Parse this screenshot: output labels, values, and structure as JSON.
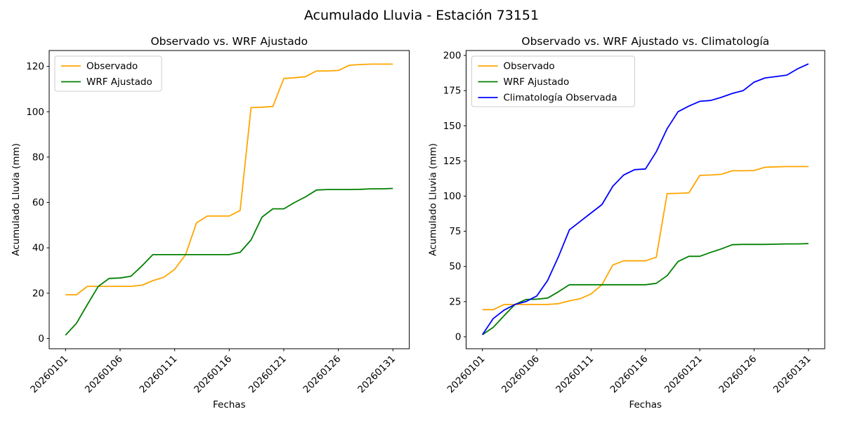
{
  "suptitle": "Acumulado Lluvia - Estación 73151",
  "chart_data": [
    {
      "type": "line",
      "title": "Observado vs. WRF Ajustado",
      "xlabel": "Fechas",
      "ylabel": "Acumulado Lluvia (mm)",
      "x": [
        "20260101",
        "20260102",
        "20260103",
        "20260104",
        "20260105",
        "20260106",
        "20260107",
        "20260108",
        "20260109",
        "20260110",
        "20260111",
        "20260112",
        "20260113",
        "20260114",
        "20260115",
        "20260116",
        "20260117",
        "20260118",
        "20260119",
        "20260120",
        "20260121",
        "20260122",
        "20260123",
        "20260124",
        "20260125",
        "20260126",
        "20260127",
        "20260128",
        "20260129",
        "20260130",
        "20260131"
      ],
      "x_tick_labels": [
        "20260101",
        "20260106",
        "20260111",
        "20260116",
        "20260121",
        "20260126",
        "20260131"
      ],
      "yticks": [
        0,
        20,
        40,
        60,
        80,
        100,
        120
      ],
      "ylim": [
        -4.5,
        127
      ],
      "grid": false,
      "legend_position": "upper left",
      "series": [
        {
          "name": "Observado",
          "color": "#FFA500",
          "values": [
            19.3,
            19.3,
            23,
            23,
            23,
            23,
            23,
            23.5,
            25.5,
            27,
            30.5,
            37,
            51,
            54,
            54,
            54,
            56.5,
            101.8,
            102,
            102.3,
            114.7,
            115,
            115.5,
            118,
            118,
            118.2,
            120.5,
            120.8,
            121,
            121,
            121
          ]
        },
        {
          "name": "WRF Ajustado",
          "color": "#008000",
          "values": [
            1.5,
            6.7,
            15,
            23,
            26.5,
            26.7,
            27.5,
            32,
            37,
            37,
            37,
            37,
            37,
            37,
            37,
            37,
            38,
            43.5,
            53.5,
            57.2,
            57.2,
            60,
            62.5,
            65.5,
            65.7,
            65.7,
            65.7,
            65.8,
            66,
            66,
            66.2
          ]
        }
      ]
    },
    {
      "type": "line",
      "title": "Observado vs. WRF Ajustado vs. Climatología",
      "xlabel": "Fechas",
      "ylabel": "Acumulado Lluvia (mm)",
      "x": [
        "20260101",
        "20260102",
        "20260103",
        "20260104",
        "20260105",
        "20260106",
        "20260107",
        "20260108",
        "20260109",
        "20260110",
        "20260111",
        "20260112",
        "20260113",
        "20260114",
        "20260115",
        "20260116",
        "20260117",
        "20260118",
        "20260119",
        "20260120",
        "20260121",
        "20260122",
        "20260123",
        "20260124",
        "20260125",
        "20260126",
        "20260127",
        "20260128",
        "20260129",
        "20260130",
        "20260131"
      ],
      "x_tick_labels": [
        "20260101",
        "20260106",
        "20260111",
        "20260116",
        "20260121",
        "20260126",
        "20260131"
      ],
      "yticks": [
        0,
        25,
        50,
        75,
        100,
        125,
        150,
        175,
        200
      ],
      "ylim": [
        -8.5,
        203.5
      ],
      "grid": false,
      "legend_position": "upper left",
      "series": [
        {
          "name": "Observado",
          "color": "#FFA500",
          "values": [
            19.3,
            19.3,
            23,
            23,
            23,
            23,
            23,
            23.5,
            25.5,
            27,
            30.5,
            37,
            51,
            54,
            54,
            54,
            56.5,
            101.8,
            102,
            102.3,
            114.7,
            115,
            115.5,
            118,
            118,
            118.2,
            120.5,
            120.8,
            121,
            121,
            121
          ]
        },
        {
          "name": "WRF Ajustado",
          "color": "#008000",
          "values": [
            1.5,
            6.7,
            15,
            23,
            26.5,
            26.7,
            27.5,
            32,
            37,
            37,
            37,
            37,
            37,
            37,
            37,
            37,
            38,
            43.5,
            53.5,
            57.2,
            57.2,
            60,
            62.5,
            65.5,
            65.7,
            65.7,
            65.7,
            65.8,
            66,
            66,
            66.2
          ]
        },
        {
          "name": "Climatología Observada",
          "color": "#0000FF",
          "values": [
            1.5,
            13,
            19,
            23,
            25,
            29,
            40,
            57,
            76,
            82,
            88,
            94,
            107,
            115,
            118.8,
            119.3,
            131.5,
            148,
            160,
            164,
            167.4,
            168,
            170.3,
            173,
            175,
            181,
            184,
            185,
            186,
            190.5,
            194
          ]
        }
      ]
    }
  ]
}
